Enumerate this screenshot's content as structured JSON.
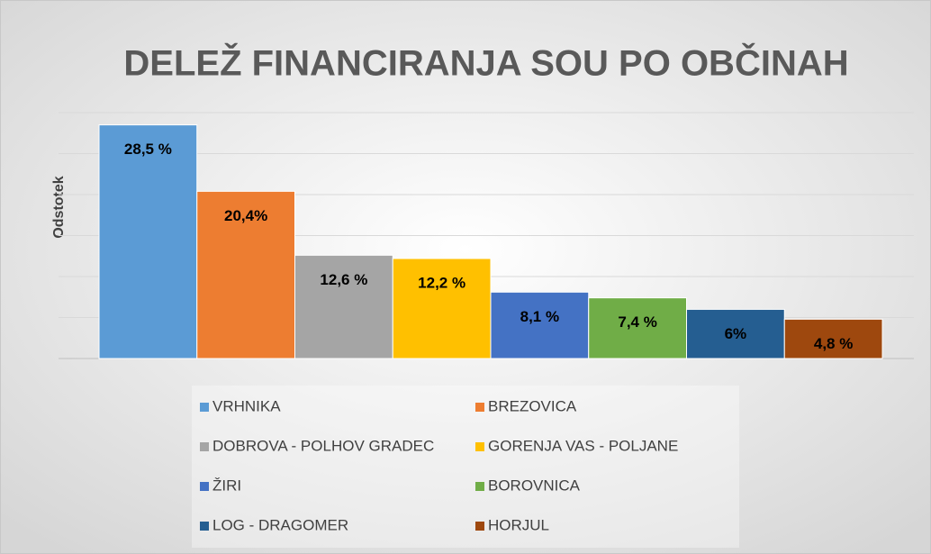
{
  "chart_data": {
    "type": "bar",
    "title": "DELEŽ FINANCIRANJA SOU PO OBČINAH",
    "y_label": "Odstotek",
    "categories": [
      null
    ],
    "series": [
      {
        "name": "VRHNIKA",
        "color": "#5b9bd5",
        "values": [
          28.5
        ],
        "value_labels": [
          "28,5 %"
        ]
      },
      {
        "name": "BREZOVICA",
        "color": "#ed7d31",
        "values": [
          20.4
        ],
        "value_labels": [
          "20,4%"
        ]
      },
      {
        "name": "DOBROVA - POLHOV GRADEC",
        "color": "#a5a5a5",
        "values": [
          12.6
        ],
        "value_labels": [
          "12,6 %"
        ]
      },
      {
        "name": "GORENJA VAS - POLJANE",
        "color": "#ffc000",
        "values": [
          12.2
        ],
        "value_labels": [
          "12,2 %"
        ]
      },
      {
        "name": "ŽIRI",
        "color": "#4472c4",
        "values": [
          8.1
        ],
        "value_labels": [
          "8,1 %"
        ]
      },
      {
        "name": "BOROVNICA",
        "color": "#70ad47",
        "values": [
          7.4
        ],
        "value_labels": [
          "7,4 %"
        ]
      },
      {
        "name": "LOG - DRAGOMER",
        "color": "#255e91",
        "values": [
          6
        ],
        "value_labels": [
          "6%"
        ]
      },
      {
        "name": "HORJUL",
        "color": "#9e480e",
        "values": [
          4.8
        ],
        "value_labels": [
          "4,8 %"
        ]
      }
    ],
    "ylim": [
      0,
      30
    ],
    "yticks": [
      0,
      5,
      10,
      15,
      20,
      25,
      30
    ],
    "grid": true
  }
}
